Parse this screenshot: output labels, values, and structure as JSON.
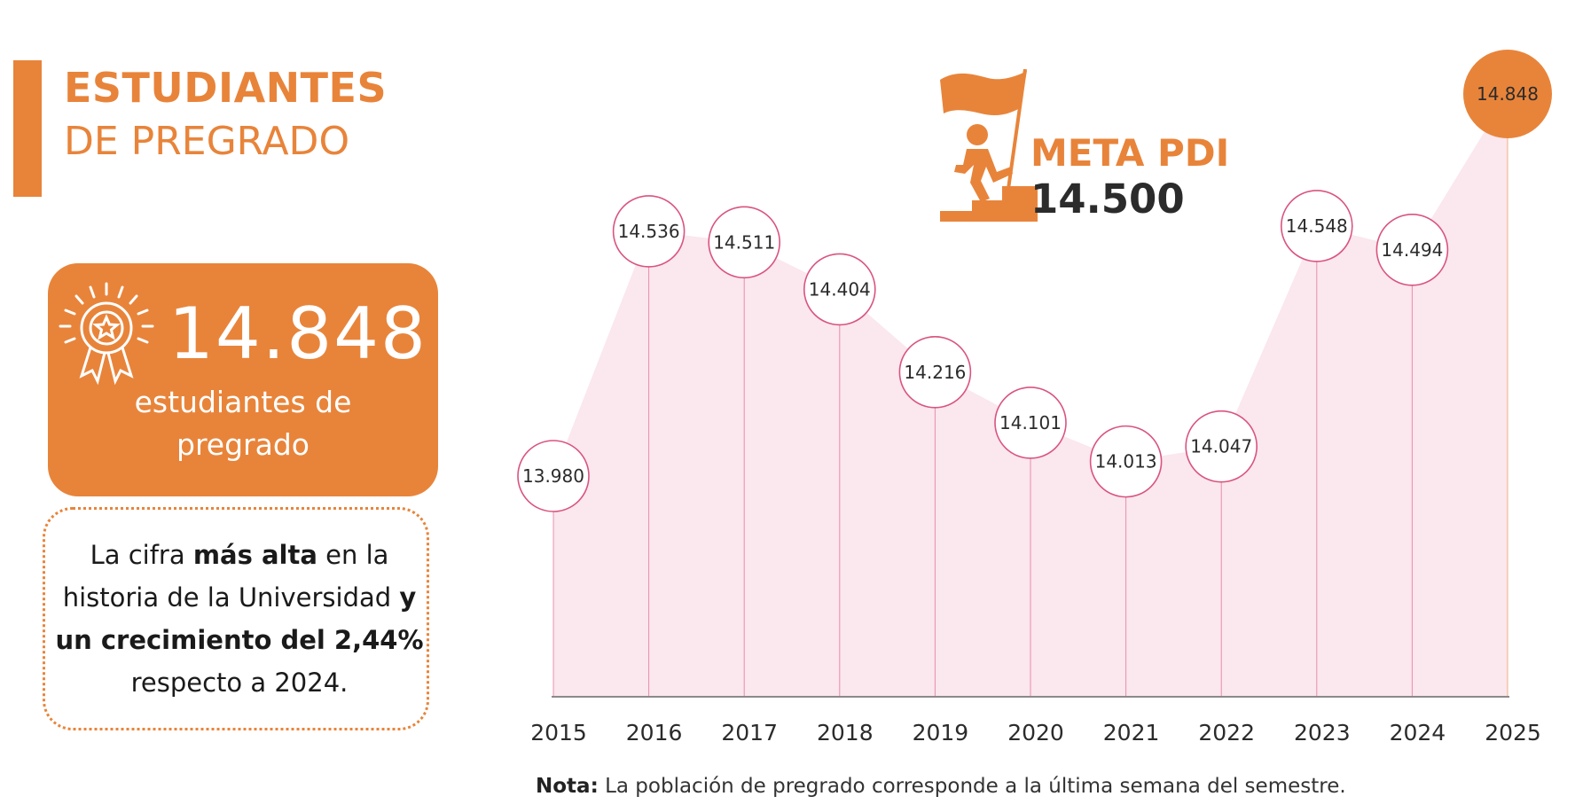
{
  "header": {
    "title_line1": "ESTUDIANTES",
    "title_line2": "DE PREGRADO"
  },
  "stat_card": {
    "value": "14.848",
    "label_line1": "estudiantes de",
    "label_line2": "pregrado",
    "icon": "award-ribbon-icon"
  },
  "note_box": {
    "part1": "La cifra ",
    "part2_bold": "más alta",
    "part3": " en la historia de la Universidad ",
    "part4_bold": "y un crecimiento del 2,44%",
    "part5": " respecto a 2024."
  },
  "meta": {
    "title": "META PDI",
    "value": "14.500",
    "icon": "flag-climber-icon"
  },
  "footnote": {
    "label_bold": "Nota:",
    "text": " La población de pregrado corresponde a la última semana del semestre."
  },
  "colors": {
    "accent": "#E8843A",
    "area_fill": "#FBE7EE",
    "marker_stroke": "#D9547E",
    "dark_text": "#2b2b2b"
  },
  "chart_data": {
    "type": "area",
    "categories": [
      "2015",
      "2016",
      "2017",
      "2018",
      "2019",
      "2020",
      "2021",
      "2022",
      "2023",
      "2024",
      "2025"
    ],
    "values": [
      13980,
      14536,
      14511,
      14404,
      14216,
      14101,
      14013,
      14047,
      14548,
      14494,
      14848
    ],
    "value_labels": [
      "13.980",
      "14.536",
      "14.511",
      "14.404",
      "14.216",
      "14.101",
      "14.013",
      "14.047",
      "14.548",
      "14.494",
      "14.848"
    ],
    "highlight_index": 10,
    "grid": false,
    "legend": "none"
  }
}
